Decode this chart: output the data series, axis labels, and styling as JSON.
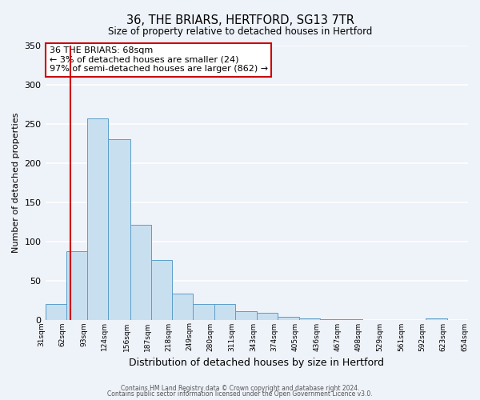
{
  "title": "36, THE BRIARS, HERTFORD, SG13 7TR",
  "subtitle": "Size of property relative to detached houses in Hertford",
  "xlabel": "Distribution of detached houses by size in Hertford",
  "ylabel": "Number of detached properties",
  "bar_color": "#c8dff0",
  "bar_edge_color": "#5b9ec9",
  "background_color": "#eef2f9",
  "grid_color": "#ffffff",
  "bin_edges": [
    31,
    62,
    93,
    124,
    156,
    187,
    218,
    249,
    280,
    311,
    343,
    374,
    405,
    436,
    467,
    498,
    529,
    561,
    592,
    623,
    654
  ],
  "bin_labels": [
    "31sqm",
    "62sqm",
    "93sqm",
    "124sqm",
    "156sqm",
    "187sqm",
    "218sqm",
    "249sqm",
    "280sqm",
    "311sqm",
    "343sqm",
    "374sqm",
    "405sqm",
    "436sqm",
    "467sqm",
    "498sqm",
    "529sqm",
    "561sqm",
    "592sqm",
    "623sqm",
    "654sqm"
  ],
  "counts": [
    20,
    87,
    257,
    230,
    121,
    76,
    33,
    20,
    20,
    11,
    9,
    4,
    2,
    1,
    1,
    0,
    0,
    0,
    2,
    0
  ],
  "property_size": 68,
  "vline_color": "#cc0000",
  "annotation_line1": "36 THE BRIARS: 68sqm",
  "annotation_line2": "← 3% of detached houses are smaller (24)",
  "annotation_line3": "97% of semi-detached houses are larger (862) →",
  "annotation_box_color": "#ffffff",
  "annotation_border_color": "#cc0000",
  "ylim": [
    0,
    350
  ],
  "yticks": [
    0,
    50,
    100,
    150,
    200,
    250,
    300,
    350
  ],
  "footer1": "Contains HM Land Registry data © Crown copyright and database right 2024.",
  "footer2": "Contains public sector information licensed under the Open Government Licence v3.0."
}
